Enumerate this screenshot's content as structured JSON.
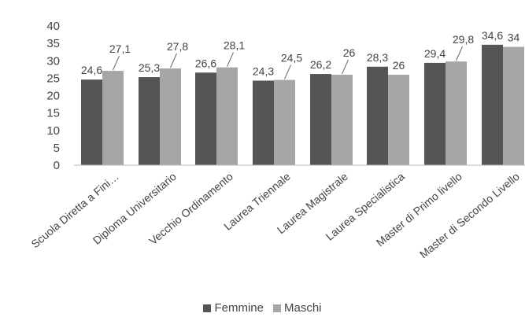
{
  "chart_data": {
    "type": "bar",
    "categories": [
      "Scuola Diretta a Fini…",
      "Diploma Universitario",
      "Vecchio Ordinamento",
      "Laurea Triennale",
      "Laurea Magistrale",
      "Laurea Specialistica",
      "Master di Primo livello",
      "Master di Secondo Livello"
    ],
    "series": [
      {
        "name": "Femmine",
        "color": "#555555",
        "values": [
          24.6,
          25.3,
          26.6,
          24.3,
          26.2,
          28.3,
          29.4,
          34.6
        ],
        "labels": [
          "24,6",
          "25,3",
          "26,6",
          "24,3",
          "26,2",
          "28,3",
          "29,4",
          "34,6"
        ]
      },
      {
        "name": "Maschi",
        "color": "#a6a6a6",
        "values": [
          27.1,
          27.8,
          28.1,
          24.5,
          26,
          26,
          29.8,
          34
        ],
        "labels": [
          "27,1",
          "27,8",
          "28,1",
          "24,5",
          "26",
          "26",
          "29,8",
          "34"
        ]
      }
    ],
    "ylim": [
      0,
      40
    ],
    "yticks": [
      0,
      5,
      10,
      15,
      20,
      25,
      30,
      35,
      40
    ],
    "grid": false,
    "legend_position": "bottom"
  }
}
